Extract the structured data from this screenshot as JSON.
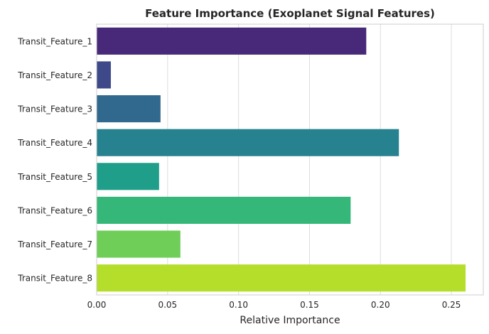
{
  "chart_data": {
    "type": "bar",
    "orientation": "horizontal",
    "title": "Feature Importance (Exoplanet Signal Features)",
    "xlabel": "Relative Importance",
    "ylabel": "",
    "categories": [
      "Transit_Feature_1",
      "Transit_Feature_2",
      "Transit_Feature_3",
      "Transit_Feature_4",
      "Transit_Feature_5",
      "Transit_Feature_6",
      "Transit_Feature_7",
      "Transit_Feature_8"
    ],
    "values": [
      0.19,
      0.01,
      0.045,
      0.213,
      0.044,
      0.179,
      0.059,
      0.26
    ],
    "colors": [
      "#482878",
      "#3e4989",
      "#31688e",
      "#26828e",
      "#1f9e89",
      "#35b779",
      "#6ece58",
      "#b5de2b"
    ],
    "xlim": [
      0,
      0.2725
    ],
    "xticks": [
      0.0,
      0.05,
      0.1,
      0.15,
      0.2,
      0.25
    ],
    "xtick_labels": [
      "0.00",
      "0.05",
      "0.10",
      "0.15",
      "0.20",
      "0.25"
    ],
    "grid": true,
    "style": "seaborn-whitegrid"
  }
}
